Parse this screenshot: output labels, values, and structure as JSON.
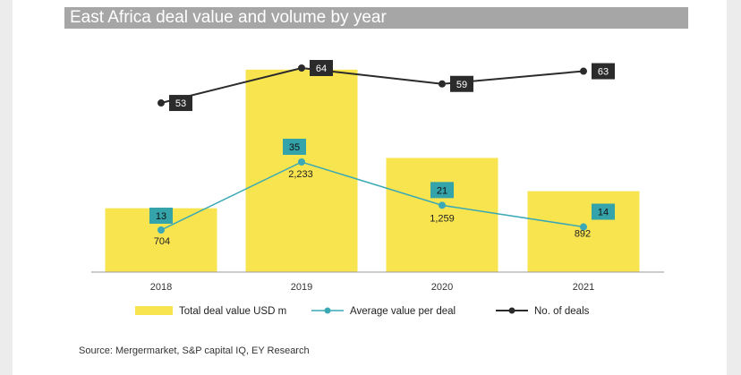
{
  "header": {
    "title": "East Africa deal  value and volume by year"
  },
  "footer": {
    "source": "Source: Mergermarket, S&P capital IQ, EY Research"
  },
  "colors": {
    "bar": "#f7e44f",
    "avg_line": "#3aa9b5",
    "avg_label_bg": "#35a3aa",
    "deals_line": "#2b2b2b",
    "deals_label_bg": "#2b2b2b"
  },
  "chart_data": {
    "type": "bar",
    "title": "East Africa deal  value and volume by year",
    "categories": [
      "2018",
      "2019",
      "2020",
      "2021"
    ],
    "series": [
      {
        "name": "Total deal value USD m",
        "kind": "bar",
        "values": [
          704,
          2233,
          1259,
          892
        ],
        "labels": [
          "704",
          "2,233",
          "1,259",
          "892"
        ],
        "color": "#f7e44f"
      },
      {
        "name": "Average value per deal",
        "kind": "line",
        "values": [
          13,
          35,
          21,
          14
        ],
        "labels": [
          "13",
          "35",
          "21",
          "14"
        ],
        "color": "#3aa9b5"
      },
      {
        "name": "No. of deals",
        "kind": "line",
        "values": [
          53,
          64,
          59,
          63
        ],
        "labels": [
          "53",
          "64",
          "59",
          "63"
        ],
        "color": "#2b2b2b"
      }
    ],
    "legend": [
      "Total deal value USD m",
      "Average value per deal",
      "No. of deals"
    ],
    "legend_position": "bottom",
    "grid": false
  }
}
